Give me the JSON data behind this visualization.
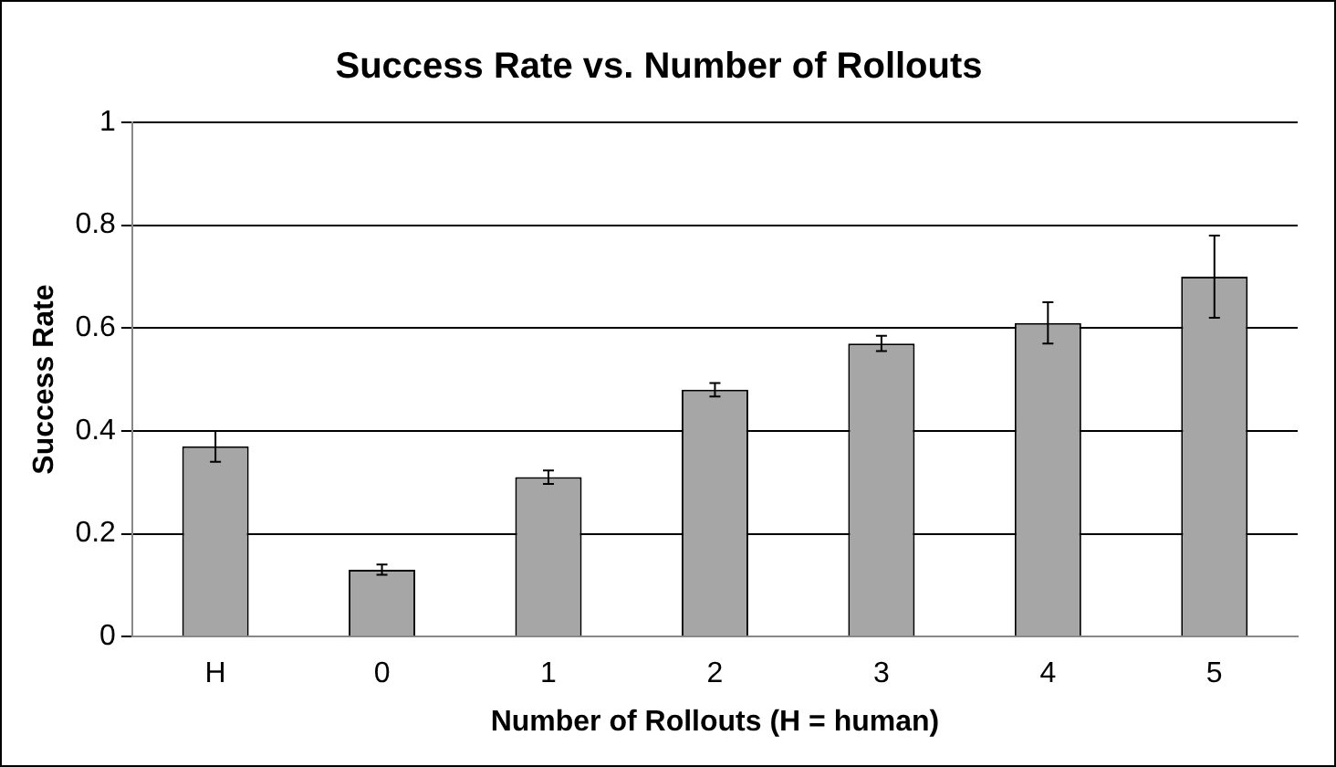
{
  "chart_data": {
    "type": "bar",
    "title": "Success Rate vs. Number of Rollouts",
    "xlabel": "Number of Rollouts (H = human)",
    "ylabel": "Success Rate",
    "categories": [
      "H",
      "0",
      "1",
      "2",
      "3",
      "4",
      "5"
    ],
    "values": [
      0.37,
      0.13,
      0.31,
      0.48,
      0.57,
      0.61,
      0.7
    ],
    "errors": [
      0.03,
      0.01,
      0.013,
      0.013,
      0.015,
      0.04,
      0.08
    ],
    "color": "#a6a6a6",
    "ylim": [
      0,
      1
    ],
    "yticks": [
      0,
      0.2,
      0.4,
      0.6,
      0.8,
      1
    ],
    "grid": "y",
    "legend": false
  }
}
